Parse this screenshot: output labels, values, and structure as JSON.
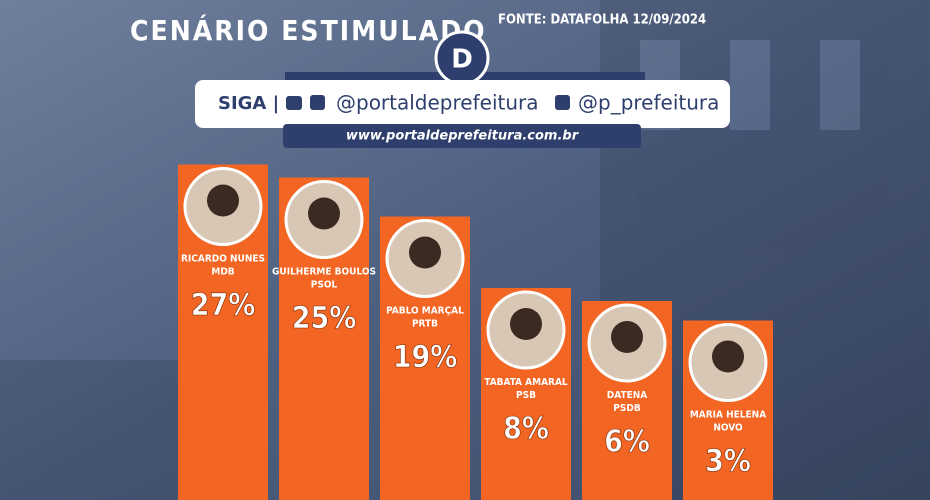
{
  "chart_data": {
    "type": "bar",
    "title": "CENÁRIO ESTIMULADO",
    "source": "FONTE: DATAFOLHA 12/09/2024",
    "follow": "SIGA |",
    "handle_main": "@portaldeprefeitura",
    "handle_twitter": "@p_prefeitura",
    "website": "www.portaldeprefeitura.com.br",
    "categories": [
      "RICARDO NUNES",
      "GUILHERME BOULOS",
      "PABLO MARÇAL",
      "TABATA AMARAL",
      "DATENA",
      "MARIA HELENA"
    ],
    "parties": [
      "MDB",
      "PSOL",
      "PRTB",
      "PSB",
      "PSDB",
      "NOVO"
    ],
    "values": [
      27,
      25,
      19,
      8,
      6,
      3
    ],
    "value_labels": [
      "27%",
      "25%",
      "19%",
      "8%",
      "6%",
      "3%"
    ],
    "color": "#f26522"
  }
}
